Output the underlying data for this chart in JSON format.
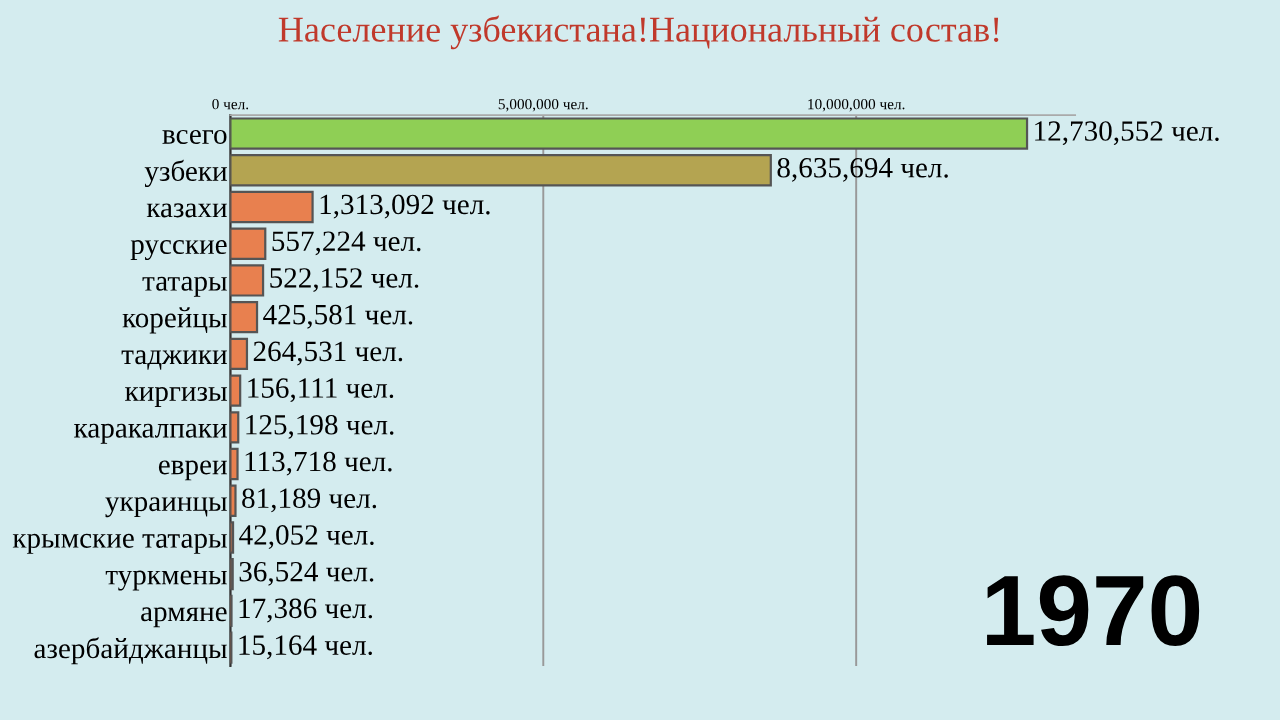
{
  "chart_data": {
    "type": "bar",
    "orientation": "horizontal",
    "title": "Население узбекистана!Национальный состав!",
    "categories": [
      "всего",
      "узбеки",
      "казахи",
      "русские",
      "татары",
      "корейцы",
      "таджики",
      "киргизы",
      "каракалпаки",
      "евреи",
      "украинцы",
      "крымские татары",
      "туркмены",
      "армяне",
      "азербайджанцы"
    ],
    "values": [
      12730552,
      8635694,
      1313092,
      557224,
      522152,
      425581,
      264531,
      156111,
      125198,
      113718,
      81189,
      42052,
      36524,
      17386,
      15164
    ],
    "value_labels": [
      "12,730,552 чел.",
      "8,635,694 чел.",
      "1,313,092 чел.",
      "557,224 чел.",
      "522,152 чел.",
      "425,581 чел.",
      "264,531 чел.",
      "156,111 чел.",
      "125,198 чел.",
      "113,718 чел.",
      "81,189 чел.",
      "42,052 чел.",
      "36,524 чел.",
      "17,386 чел.",
      "15,164 чел."
    ],
    "colors": [
      "#8fcf55",
      "#b4a451",
      "#e8804f",
      "#e8804f",
      "#e8804f",
      "#e8804f",
      "#e8804f",
      "#e8804f",
      "#e8804f",
      "#e8804f",
      "#e8804f",
      "#e8804f",
      "#e8804f",
      "#e8804f",
      "#e8804f"
    ],
    "xlim": [
      0,
      13500000
    ],
    "xticks": [
      {
        "value": 0,
        "label": "0 чел."
      },
      {
        "value": 5000000,
        "label": "5,000,000 чел."
      },
      {
        "value": 10000000,
        "label": "10,000,000 чел."
      }
    ],
    "grid": "x",
    "annotations": [
      "1970"
    ]
  }
}
